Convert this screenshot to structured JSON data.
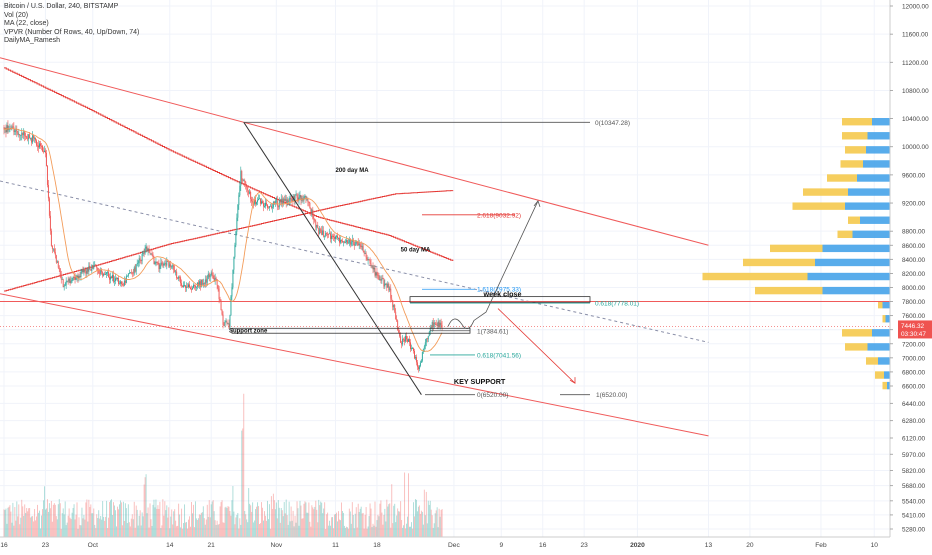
{
  "legend": {
    "symbol": "Bitcoin / U.S. Dollar, 240, BITSTAMP",
    "volume": "Vol (20)",
    "ma": "MA (22, close)",
    "vpvr": "VPVR (Number Of Rows, 40, Up/Down, 74)",
    "daily_ma": "DailyMA_Ramesh"
  },
  "colors": {
    "up": "#26a69a",
    "down": "#ef5350",
    "channel": "#f05a5a",
    "fib_red": "#e53935",
    "fib_teal": "#26a69a",
    "fib_blue": "#2196f3",
    "vpvr_up": "#3b9de8",
    "vpvr_down": "#f4c542",
    "grid": "#f0f3fa",
    "axis_text": "#444444"
  },
  "chart_data": {
    "type": "candlestick",
    "interval": "240",
    "y_axis": {
      "range": [
        5220,
        12050
      ],
      "ticks": [
        12000,
        11600,
        11200,
        10800,
        10400,
        10000,
        9600,
        9200,
        8800,
        8600,
        8400,
        8200,
        8000,
        7800,
        7600,
        7400,
        7200,
        7000,
        6800,
        6600,
        6440,
        6280,
        6120,
        5970,
        5820,
        5680,
        5540,
        5410,
        5280
      ],
      "tick_labels": [
        "12000.00",
        "11600.00",
        "11200.00",
        "10800.00",
        "10400.00",
        "10000.00",
        "9600.00",
        "9200.00",
        "8800.00",
        "8600.00",
        "8400.00",
        "8200.00",
        "8000.00",
        "7800.00",
        "7600.00",
        "7400.00",
        "7200.00",
        "7000.00",
        "6800.00",
        "6600.00",
        "6440.00",
        "6280.00",
        "6120.00",
        "5970.00",
        "5820.00",
        "5680.00",
        "5540.00",
        "5410.00",
        "5280.00"
      ]
    },
    "x_axis": {
      "labels": [
        "16",
        "23",
        "Oct",
        "14",
        "21",
        "Nov",
        "11",
        "18",
        "Dec",
        "9",
        "16",
        "23",
        "2020",
        "13",
        "20",
        "Feb",
        "10"
      ]
    },
    "price_path": [
      [
        "2019-09-16",
        10280
      ],
      [
        "2019-09-19",
        10180
      ],
      [
        "2019-09-21",
        10100
      ],
      [
        "2019-09-23",
        9900
      ],
      [
        "2019-09-24",
        8600
      ],
      [
        "2019-09-26",
        8050
      ],
      [
        "2019-09-28",
        8150
      ],
      [
        "2019-10-01",
        8300
      ],
      [
        "2019-10-03",
        8200
      ],
      [
        "2019-10-06",
        8050
      ],
      [
        "2019-10-08",
        8250
      ],
      [
        "2019-10-10",
        8550
      ],
      [
        "2019-10-12",
        8300
      ],
      [
        "2019-10-14",
        8350
      ],
      [
        "2019-10-16",
        8050
      ],
      [
        "2019-10-18",
        8000
      ],
      [
        "2019-10-20",
        8100
      ],
      [
        "2019-10-21",
        8200
      ],
      [
        "2019-10-22",
        8050
      ],
      [
        "2019-10-23",
        7500
      ],
      [
        "2019-10-24",
        7450
      ],
      [
        "2019-10-25",
        8650
      ],
      [
        "2019-10-26",
        9600
      ],
      [
        "2019-10-27",
        9400
      ],
      [
        "2019-10-28",
        9250
      ],
      [
        "2019-10-31",
        9150
      ],
      [
        "2019-11-03",
        9250
      ],
      [
        "2019-11-06",
        9300
      ],
      [
        "2019-11-08",
        8800
      ],
      [
        "2019-11-11",
        8700
      ],
      [
        "2019-11-14",
        8650
      ],
      [
        "2019-11-16",
        8500
      ],
      [
        "2019-11-18",
        8150
      ],
      [
        "2019-11-20",
        8000
      ],
      [
        "2019-11-21",
        7650
      ],
      [
        "2019-11-22",
        7200
      ],
      [
        "2019-11-23",
        7300
      ],
      [
        "2019-11-24",
        7100
      ],
      [
        "2019-11-25",
        6850
      ],
      [
        "2019-11-26",
        7150
      ],
      [
        "2019-11-27",
        7450
      ],
      [
        "2019-11-28",
        7500
      ],
      [
        "2019-11-29",
        7446
      ]
    ],
    "moving_averages": [
      {
        "name": "200 day MA",
        "points": [
          [
            "2019-09-16",
            7950
          ],
          [
            "2019-10-01",
            8300
          ],
          [
            "2019-10-14",
            8620
          ],
          [
            "2019-10-28",
            8880
          ],
          [
            "2019-11-11",
            9150
          ],
          [
            "2019-11-21",
            9330
          ],
          [
            "2019-12-01",
            9380
          ]
        ]
      },
      {
        "name": "50 day MA",
        "points": [
          [
            "2019-09-16",
            11120
          ],
          [
            "2019-09-30",
            10550
          ],
          [
            "2019-10-14",
            9950
          ],
          [
            "2019-10-28",
            9400
          ],
          [
            "2019-11-08",
            9000
          ],
          [
            "2019-11-20",
            8740
          ],
          [
            "2019-11-28",
            8470
          ],
          [
            "2019-12-01",
            8370
          ]
        ]
      }
    ],
    "volume_profile": [
      {
        "price": 10350,
        "up": 0.12,
        "down": 0.2
      },
      {
        "price": 10150,
        "up": 0.15,
        "down": 0.17
      },
      {
        "price": 9950,
        "up": 0.16,
        "down": 0.14
      },
      {
        "price": 9750,
        "up": 0.18,
        "down": 0.15
      },
      {
        "price": 9550,
        "up": 0.22,
        "down": 0.2
      },
      {
        "price": 9350,
        "up": 0.28,
        "down": 0.3
      },
      {
        "price": 9150,
        "up": 0.3,
        "down": 0.35
      },
      {
        "price": 8950,
        "up": 0.2,
        "down": 0.08
      },
      {
        "price": 8750,
        "up": 0.25,
        "down": 0.1
      },
      {
        "price": 8550,
        "up": 0.45,
        "down": 0.35
      },
      {
        "price": 8350,
        "up": 0.5,
        "down": 0.48
      },
      {
        "price": 8150,
        "up": 0.55,
        "down": 0.7
      },
      {
        "price": 7950,
        "up": 0.45,
        "down": 0.45
      },
      {
        "price": 7750,
        "up": 0.05,
        "down": 0.03
      },
      {
        "price": 7550,
        "up": 0.03,
        "down": 0.02
      },
      {
        "price": 7350,
        "up": 0.12,
        "down": 0.2
      },
      {
        "price": 7150,
        "up": 0.15,
        "down": 0.15
      },
      {
        "price": 6950,
        "up": 0.08,
        "down": 0.08
      },
      {
        "price": 6750,
        "up": 0.04,
        "down": 0.06
      },
      {
        "price": 6600,
        "up": 0.02,
        "down": 0.03
      }
    ],
    "price_labels": {
      "last_price": "7446.32",
      "countdown": "03:30:47",
      "last_price_value": 7446.32
    },
    "annotations": [
      {
        "text": "200 day MA",
        "date": "2019-11-11",
        "price": 9640
      },
      {
        "text": "50 day MA",
        "date": "2019-11-22",
        "price": 8510
      },
      {
        "text": "Support zone",
        "date": "2019-10-24",
        "price": 7360
      },
      {
        "text": "week close",
        "date": "2019-12-06",
        "price": 7870
      },
      {
        "text": "KEY SUPPORT",
        "date": "2019-12-01",
        "price": 6630
      }
    ],
    "fib_levels": [
      {
        "label": "0(10347.28)",
        "price": 10347.28,
        "color": "gray"
      },
      {
        "label": "2.618(9032.92)",
        "price": 9032.92,
        "color": "red"
      },
      {
        "label": "1.618(7975.33)",
        "price": 7975.33,
        "color": "blue"
      },
      {
        "label": "0.618(7778.01)",
        "price": 7778.01,
        "color": "teal"
      },
      {
        "label": "1(7384.61)",
        "price": 7384.61,
        "color": "gray"
      },
      {
        "label": "0.618(7041.56)",
        "price": 7041.56,
        "color": "teal"
      },
      {
        "label": "0(6520.00)",
        "price": 6520.0,
        "color": "gray"
      },
      {
        "label": "1(6520.00)",
        "price": 6520.0,
        "color": "gray"
      }
    ],
    "horizontal_levels": [
      7800
    ],
    "channel": {
      "upper": [
        [
          "2019-09-16",
          11250
        ],
        [
          "2020-01-13",
          8600
        ]
      ],
      "lower": [
        [
          "2019-09-16",
          7900
        ],
        [
          "2020-01-13",
          6140
        ]
      ],
      "middle_dashed": [
        [
          "2019-09-16",
          9500
        ],
        [
          "2020-01-13",
          7220
        ]
      ]
    }
  }
}
